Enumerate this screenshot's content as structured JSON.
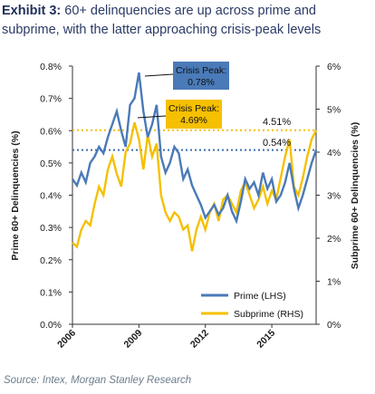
{
  "title": {
    "exhibit": "Exhibit 3:",
    "text": "60+ delinquencies are up across prime and subprime, with the latter approaching crisis-peak levels"
  },
  "source": "Source: Intex, Morgan Stanley Research",
  "colors": {
    "prime": "#4a7ab8",
    "subprime": "#f5c000",
    "prime_label_bg": "#4a7ab8",
    "subprime_label_bg": "#f5c000",
    "prime_ref": "#3a6fb0",
    "subprime_ref": "#f5c000"
  },
  "chart_data": {
    "type": "line",
    "xlabel": "",
    "ylabel_left": "Prime 60+ Delinquencies (%)",
    "ylabel_right": "Subprime 60+ Delinquencies (%)",
    "x_ticks": [
      "2006",
      "2009",
      "2012",
      "2015"
    ],
    "xlim": [
      2006,
      2017
    ],
    "ylim_left": [
      0,
      0.8
    ],
    "ylim_right": [
      0,
      6
    ],
    "y_ticks_left": [
      "0.0%",
      "0.1%",
      "0.2%",
      "0.3%",
      "0.4%",
      "0.5%",
      "0.6%",
      "0.7%",
      "0.8%"
    ],
    "y_ticks_right": [
      "0%",
      "1%",
      "2%",
      "3%",
      "4%",
      "5%",
      "6%"
    ],
    "legend": [
      "Prime (LHS)",
      "Subprime (RHS)"
    ],
    "legend_position": "bottom-right",
    "annotations": {
      "prime_peak": {
        "line1": "Crisis Peak:",
        "line2": "0.78%"
      },
      "subprime_peak": {
        "line1": "Crisis Peak:",
        "line2": "4.69%"
      },
      "prime_current": "0.54%",
      "subprime_current": "4.51%"
    },
    "reference_lines": {
      "prime": 0.54,
      "subprime": 4.51
    },
    "series": [
      {
        "name": "Prime (LHS)",
        "axis": "left",
        "x": [
          2006.0,
          2006.2,
          2006.4,
          2006.6,
          2006.8,
          2007.0,
          2007.2,
          2007.4,
          2007.6,
          2007.8,
          2008.0,
          2008.2,
          2008.4,
          2008.6,
          2008.8,
          2009.0,
          2009.2,
          2009.4,
          2009.6,
          2009.8,
          2010.0,
          2010.2,
          2010.4,
          2010.6,
          2010.8,
          2011.0,
          2011.2,
          2011.4,
          2011.6,
          2011.8,
          2012.0,
          2012.2,
          2012.4,
          2012.6,
          2012.8,
          2013.0,
          2013.2,
          2013.4,
          2013.6,
          2013.8,
          2014.0,
          2014.2,
          2014.4,
          2014.6,
          2014.8,
          2015.0,
          2015.2,
          2015.4,
          2015.6,
          2015.8,
          2016.0,
          2016.2,
          2016.4,
          2016.6,
          2016.8,
          2017.0
        ],
        "values": [
          0.45,
          0.43,
          0.47,
          0.44,
          0.5,
          0.52,
          0.55,
          0.53,
          0.58,
          0.62,
          0.66,
          0.6,
          0.55,
          0.68,
          0.7,
          0.78,
          0.66,
          0.58,
          0.62,
          0.68,
          0.52,
          0.47,
          0.5,
          0.55,
          0.53,
          0.45,
          0.48,
          0.43,
          0.4,
          0.37,
          0.33,
          0.35,
          0.37,
          0.34,
          0.36,
          0.4,
          0.35,
          0.32,
          0.38,
          0.45,
          0.42,
          0.44,
          0.4,
          0.47,
          0.42,
          0.45,
          0.38,
          0.4,
          0.44,
          0.5,
          0.42,
          0.36,
          0.4,
          0.45,
          0.5,
          0.54
        ]
      },
      {
        "name": "Subprime (RHS)",
        "axis": "right",
        "x": [
          2006.0,
          2006.2,
          2006.4,
          2006.6,
          2006.8,
          2007.0,
          2007.2,
          2007.4,
          2007.6,
          2007.8,
          2008.0,
          2008.2,
          2008.4,
          2008.6,
          2008.8,
          2009.0,
          2009.2,
          2009.4,
          2009.6,
          2009.8,
          2010.0,
          2010.2,
          2010.4,
          2010.6,
          2010.8,
          2011.0,
          2011.2,
          2011.4,
          2011.6,
          2011.8,
          2012.0,
          2012.2,
          2012.4,
          2012.6,
          2012.8,
          2013.0,
          2013.2,
          2013.4,
          2013.6,
          2013.8,
          2014.0,
          2014.2,
          2014.4,
          2014.6,
          2014.8,
          2015.0,
          2015.2,
          2015.4,
          2015.6,
          2015.8,
          2016.0,
          2016.2,
          2016.4,
          2016.6,
          2016.8,
          2017.0
        ],
        "values": [
          1.9,
          1.8,
          2.2,
          2.4,
          2.3,
          2.8,
          3.2,
          3.0,
          3.6,
          3.9,
          3.5,
          3.2,
          4.0,
          4.2,
          4.69,
          4.3,
          3.6,
          4.4,
          3.9,
          4.2,
          3.0,
          2.6,
          2.4,
          2.6,
          2.5,
          2.2,
          2.3,
          1.7,
          2.2,
          2.5,
          2.2,
          2.6,
          2.8,
          2.4,
          2.9,
          3.0,
          2.8,
          2.6,
          3.1,
          3.3,
          3.0,
          2.7,
          2.9,
          3.2,
          2.8,
          3.1,
          2.9,
          3.4,
          3.9,
          4.3,
          3.2,
          3.0,
          3.4,
          3.9,
          4.3,
          4.51
        ]
      }
    ]
  }
}
